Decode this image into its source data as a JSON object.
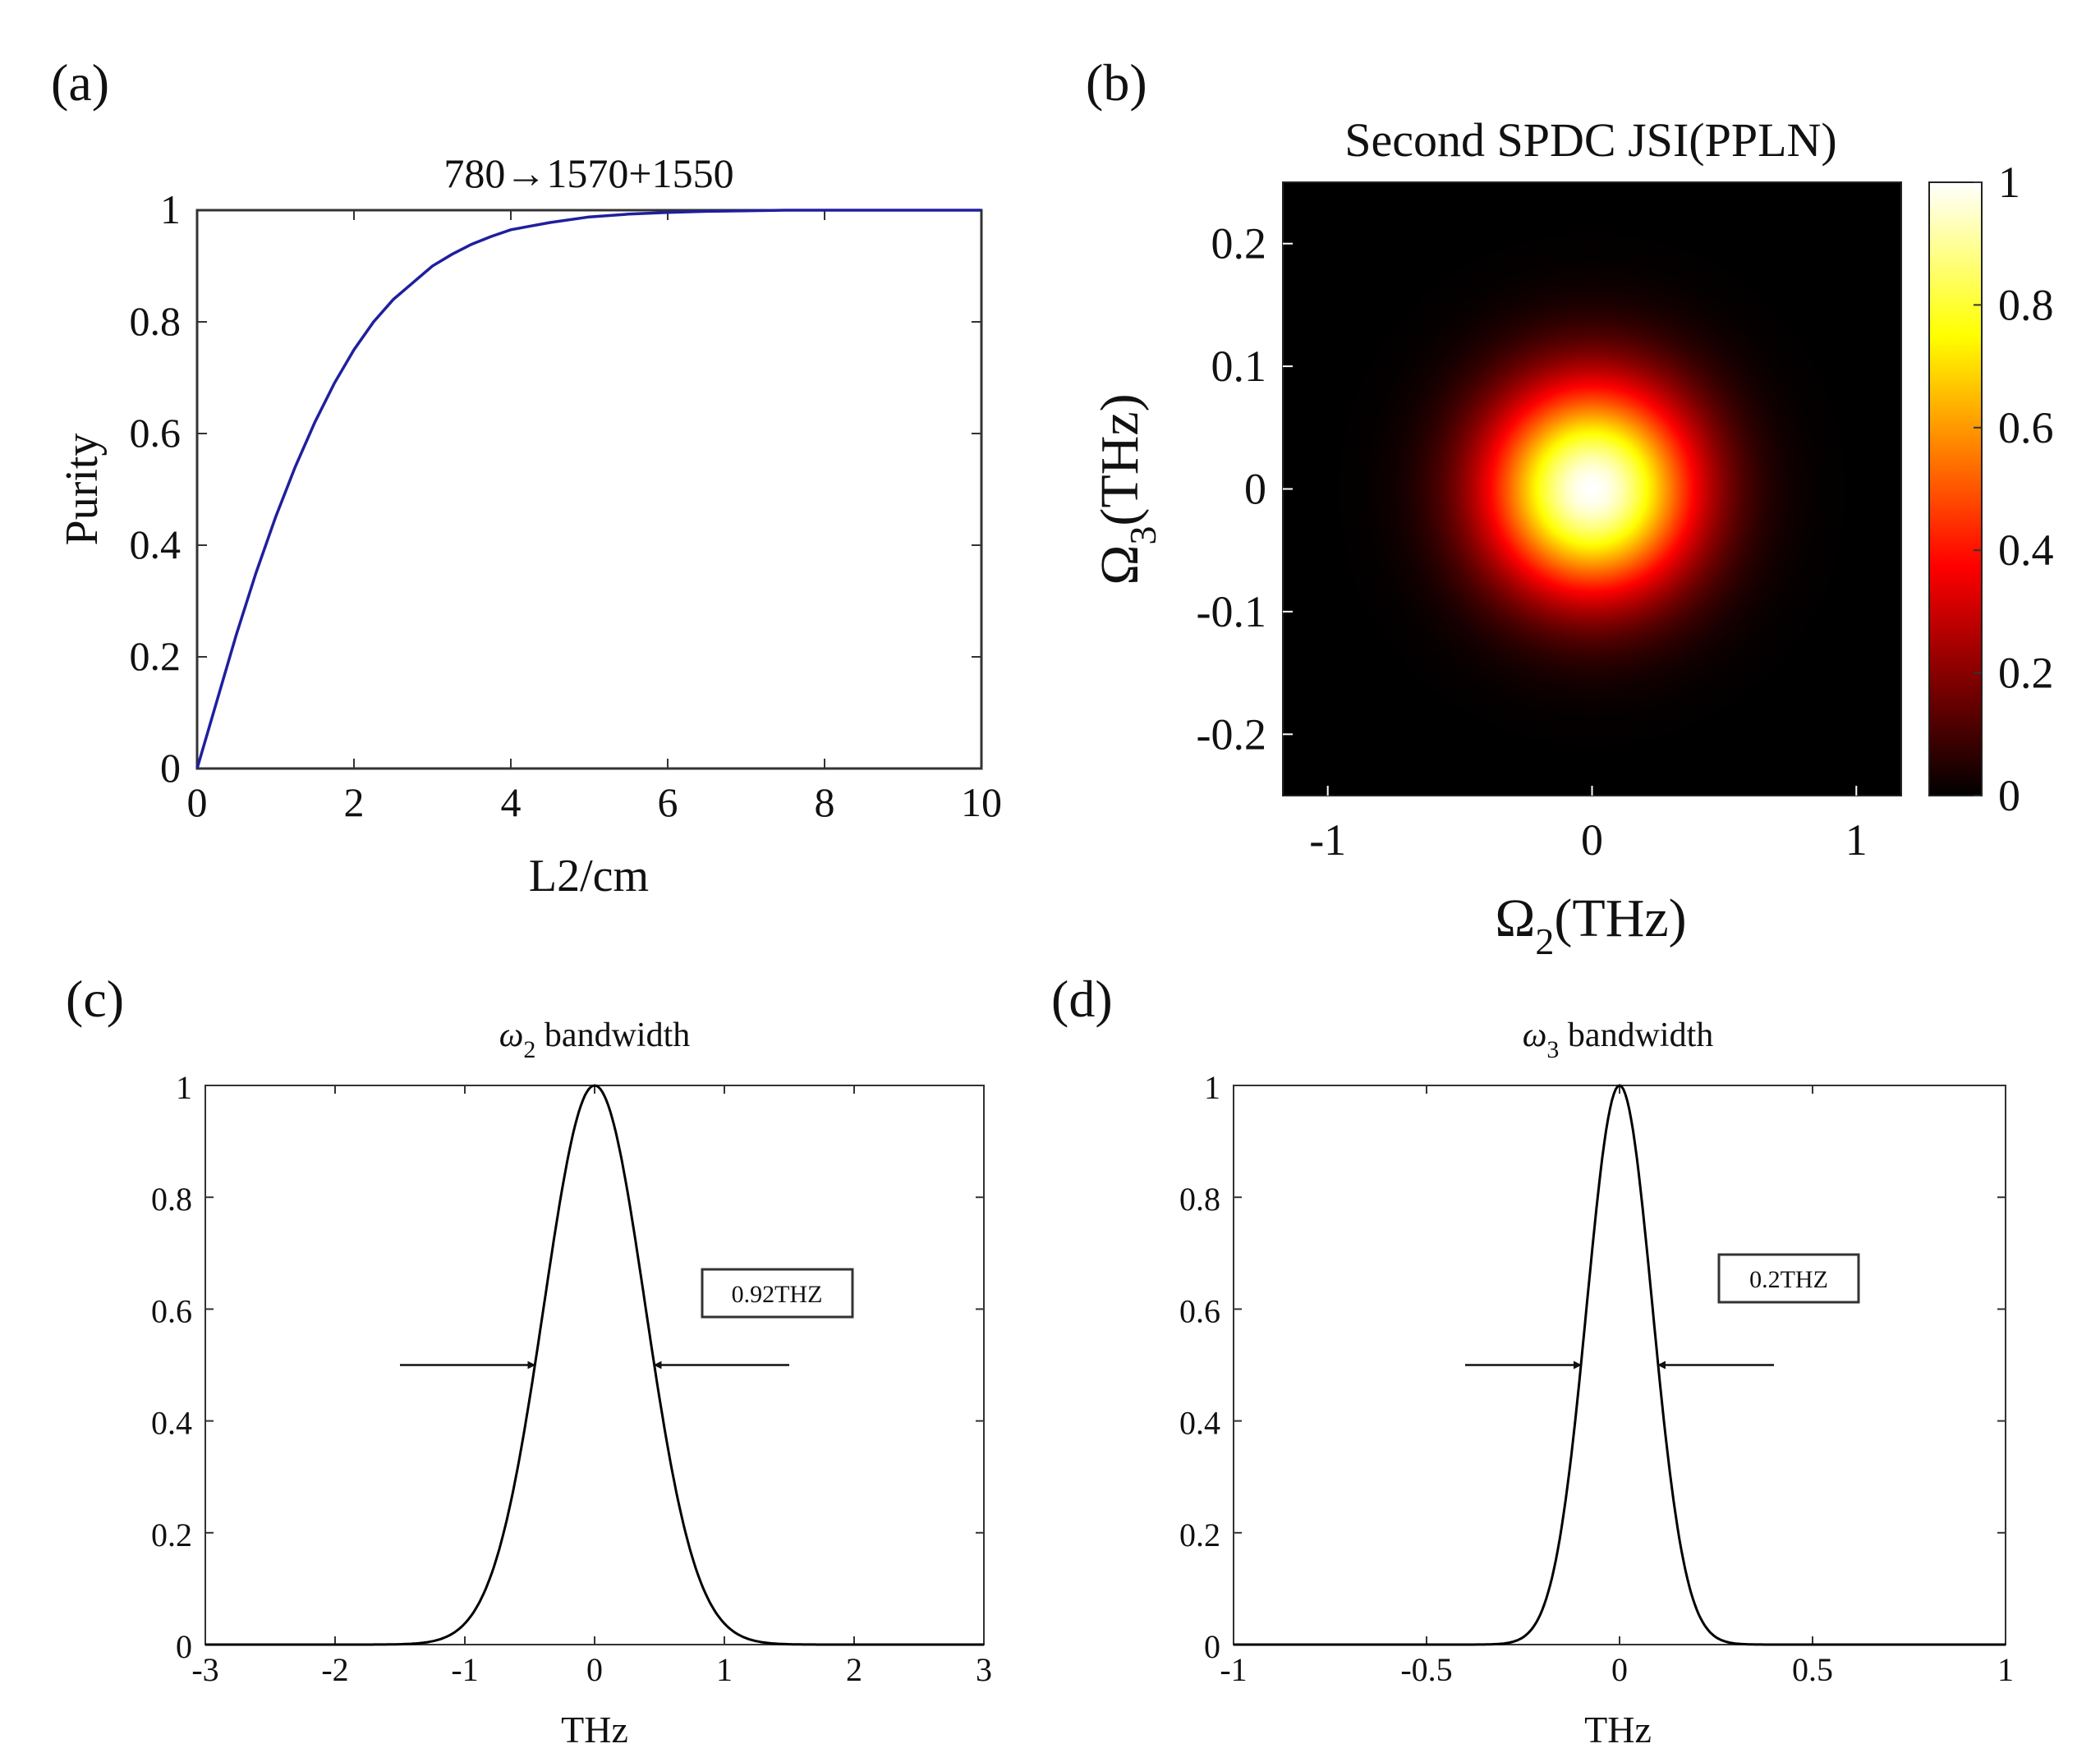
{
  "chart_data": [
    {
      "panel": "(a)",
      "type": "line",
      "title": "780→1570+1550",
      "xlabel": "L2/cm",
      "ylabel": "Purity",
      "xlim": [
        0,
        10
      ],
      "ylim": [
        0,
        1
      ],
      "xticks": [
        "0",
        "2",
        "4",
        "6",
        "8",
        "10"
      ],
      "yticks": [
        "0",
        "0.2",
        "0.4",
        "0.6",
        "0.8",
        "1"
      ],
      "line_color": "#1f1f9e",
      "series": [
        {
          "name": "purity",
          "x": [
            0,
            0.25,
            0.5,
            0.75,
            1.0,
            1.25,
            1.5,
            1.75,
            2.0,
            2.25,
            2.5,
            2.75,
            3.0,
            3.25,
            3.5,
            3.75,
            4.0,
            4.5,
            5.0,
            5.5,
            6.0,
            6.5,
            7.0,
            7.5,
            8.0,
            9.0,
            10.0
          ],
          "y": [
            0,
            0.12,
            0.24,
            0.35,
            0.45,
            0.54,
            0.62,
            0.69,
            0.75,
            0.8,
            0.84,
            0.87,
            0.9,
            0.921,
            0.939,
            0.953,
            0.965,
            0.978,
            0.988,
            0.993,
            0.996,
            0.998,
            0.999,
            1.0,
            1.0,
            1.0,
            1.0
          ]
        }
      ]
    },
    {
      "panel": "(b)",
      "type": "heatmap",
      "title": "Second SPDC JSI(PPLN)",
      "xlabel_main": "Ω",
      "xlabel_sub": "2",
      "xlabel_unit": "(THz)",
      "ylabel_main": "Ω",
      "ylabel_sub": "3",
      "ylabel_unit": "(THz)",
      "xlim": [
        -1.17,
        1.17
      ],
      "ylim": [
        -0.25,
        0.25
      ],
      "xticks": [
        {
          "v": -1,
          "t": "-1"
        },
        {
          "v": 0,
          "t": "0"
        },
        {
          "v": 1,
          "t": "1"
        }
      ],
      "yticks": [
        {
          "v": -0.2,
          "t": "-0.2"
        },
        {
          "v": -0.1,
          "t": "-0.1"
        },
        {
          "v": 0,
          "t": "0"
        },
        {
          "v": 0.1,
          "t": "0.1"
        },
        {
          "v": 0.2,
          "t": "0.2"
        }
      ],
      "function": "gaussian",
      "center": [
        0,
        0
      ],
      "sigma": [
        0.39,
        0.085
      ],
      "peak": 1,
      "colormap": "hot",
      "colorbar_ticks": [
        "0",
        "0.2",
        "0.4",
        "0.6",
        "0.8",
        "1"
      ],
      "colorbar_range": [
        0,
        1
      ]
    },
    {
      "panel": "(c)",
      "type": "line",
      "title_main": "ω",
      "title_sub": "2",
      "title_rest": " bandwidth",
      "xlabel": "THz",
      "xlim": [
        -3,
        3
      ],
      "ylim": [
        0,
        1
      ],
      "xticks": [
        "-3",
        "-2",
        "-1",
        "0",
        "1",
        "2",
        "3"
      ],
      "yticks": [
        "0",
        "0.2",
        "0.4",
        "0.6",
        "0.8",
        "1"
      ],
      "fwhm": 0.92,
      "annotation": "0.92THZ",
      "arrow_y": 0.5,
      "arrow_left_from": -1.5,
      "arrow_right_from": 1.5,
      "line_color": "#000000"
    },
    {
      "panel": "(d)",
      "type": "line",
      "title_main": "ω",
      "title_sub": "3",
      "title_rest": " bandwidth",
      "xlabel": "THz",
      "xlim": [
        -1,
        1
      ],
      "ylim": [
        0,
        1
      ],
      "xticks": [
        "-1",
        "-0.5",
        "0",
        "0.5",
        "1"
      ],
      "yticks": [
        "0",
        "0.2",
        "0.4",
        "0.6",
        "0.8",
        "1"
      ],
      "fwhm": 0.2,
      "annotation": "0.2THZ",
      "arrow_y": 0.5,
      "arrow_left_from": -0.4,
      "arrow_right_from": 0.4,
      "line_color": "#000000"
    }
  ]
}
